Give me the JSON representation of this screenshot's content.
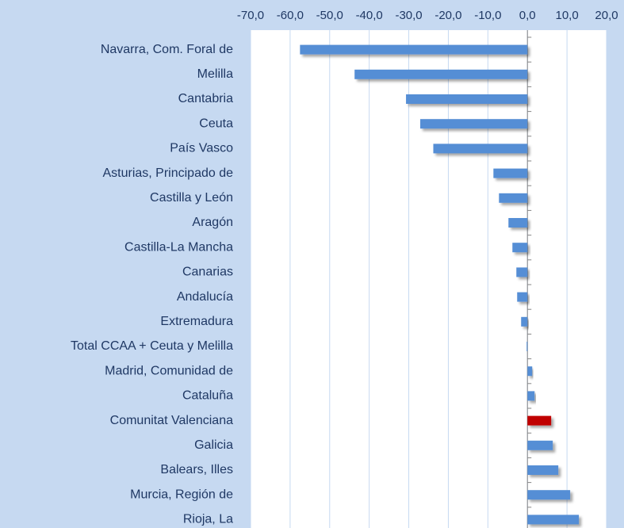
{
  "chart_data": {
    "type": "barh",
    "categories": [
      "Navarra, Com. Foral de",
      "Melilla",
      "Cantabria",
      "Ceuta",
      "País Vasco",
      "Asturias, Principado de",
      "Castilla y León",
      "Aragón",
      "Castilla-La Mancha",
      "Canarias",
      "Andalucía",
      "Extremadura",
      "Total CCAA + Ceuta y Melilla",
      "Madrid, Comunidad de ",
      "Cataluña",
      "Comunitat Valenciana",
      "Galicia",
      "Balears, Illes",
      "Murcia, Región de",
      "Rioja, La"
    ],
    "values": [
      -57.5,
      -43.7,
      -30.7,
      -27.1,
      -23.8,
      -8.6,
      -7.2,
      -4.8,
      -3.8,
      -2.8,
      -2.6,
      -1.6,
      -0.2,
      1.2,
      1.8,
      6.0,
      6.4,
      7.8,
      10.8,
      13.0
    ],
    "colors": [
      "#558ed5",
      "#558ed5",
      "#558ed5",
      "#558ed5",
      "#558ed5",
      "#558ed5",
      "#558ed5",
      "#558ed5",
      "#558ed5",
      "#558ed5",
      "#558ed5",
      "#558ed5",
      "#558ed5",
      "#558ed5",
      "#558ed5",
      "#c00000",
      "#558ed5",
      "#558ed5",
      "#558ed5",
      "#558ed5"
    ],
    "xlim": [
      -70,
      20
    ],
    "xticks": [
      {
        "value": -70,
        "label": "-70,0"
      },
      {
        "value": -60,
        "label": "-60,0"
      },
      {
        "value": -50,
        "label": "-50,0"
      },
      {
        "value": -40,
        "label": "-40,0"
      },
      {
        "value": -30,
        "label": "-30,0"
      },
      {
        "value": -20,
        "label": "-20,0"
      },
      {
        "value": -10,
        "label": "-10,0"
      },
      {
        "value": 0,
        "label": "0,0"
      },
      {
        "value": 10,
        "label": "10,0"
      },
      {
        "value": 20,
        "label": "20,0"
      }
    ],
    "grid": true
  }
}
